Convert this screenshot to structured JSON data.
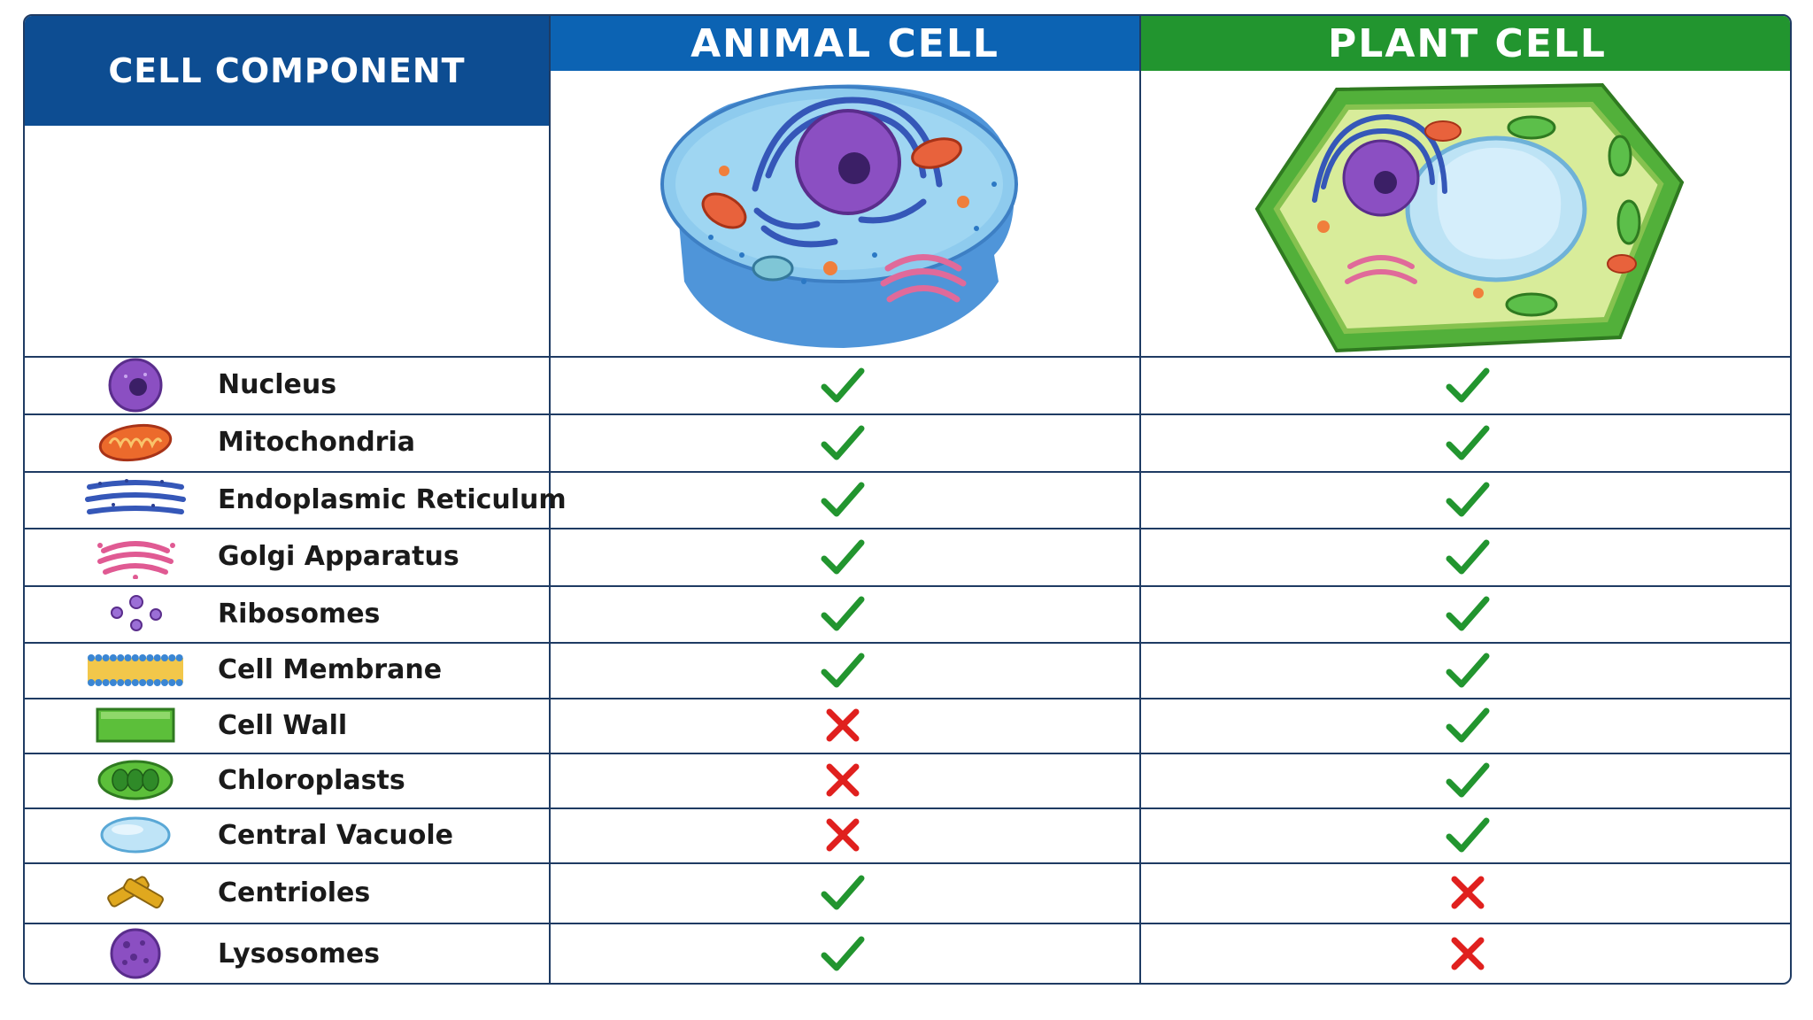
{
  "headers": {
    "component": "CELL COMPONENT",
    "animal": "ANIMAL CELL",
    "plant": "PLANT CELL"
  },
  "colors": {
    "header_component": "#0d4d92",
    "header_animal": "#0c63b3",
    "header_plant": "#22952f",
    "check": "#22952f",
    "cross": "#e0201e",
    "border": "#1f3b63"
  },
  "rows": [
    {
      "name": "Nucleus",
      "icon": "nucleus-icon",
      "animal": true,
      "plant": true
    },
    {
      "name": "Mitochondria",
      "icon": "mitochondria-icon",
      "animal": true,
      "plant": true
    },
    {
      "name": "Endoplasmic Reticulum",
      "icon": "endoplasmic-reticulum-icon",
      "animal": true,
      "plant": true
    },
    {
      "name": "Golgi Apparatus",
      "icon": "golgi-apparatus-icon",
      "animal": true,
      "plant": true
    },
    {
      "name": "Ribosomes",
      "icon": "ribosomes-icon",
      "animal": true,
      "plant": true
    },
    {
      "name": "Cell Membrane",
      "icon": "cell-membrane-icon",
      "animal": true,
      "plant": true
    },
    {
      "name": "Cell Wall",
      "icon": "cell-wall-icon",
      "animal": false,
      "plant": true
    },
    {
      "name": "Chloroplasts",
      "icon": "chloroplast-icon",
      "animal": false,
      "plant": true
    },
    {
      "name": "Central Vacuole",
      "icon": "central-vacuole-icon",
      "animal": false,
      "plant": true
    },
    {
      "name": "Centrioles",
      "icon": "centrioles-icon",
      "animal": true,
      "plant": false
    },
    {
      "name": "Lysosomes",
      "icon": "lysosome-icon",
      "animal": true,
      "plant": false
    }
  ]
}
